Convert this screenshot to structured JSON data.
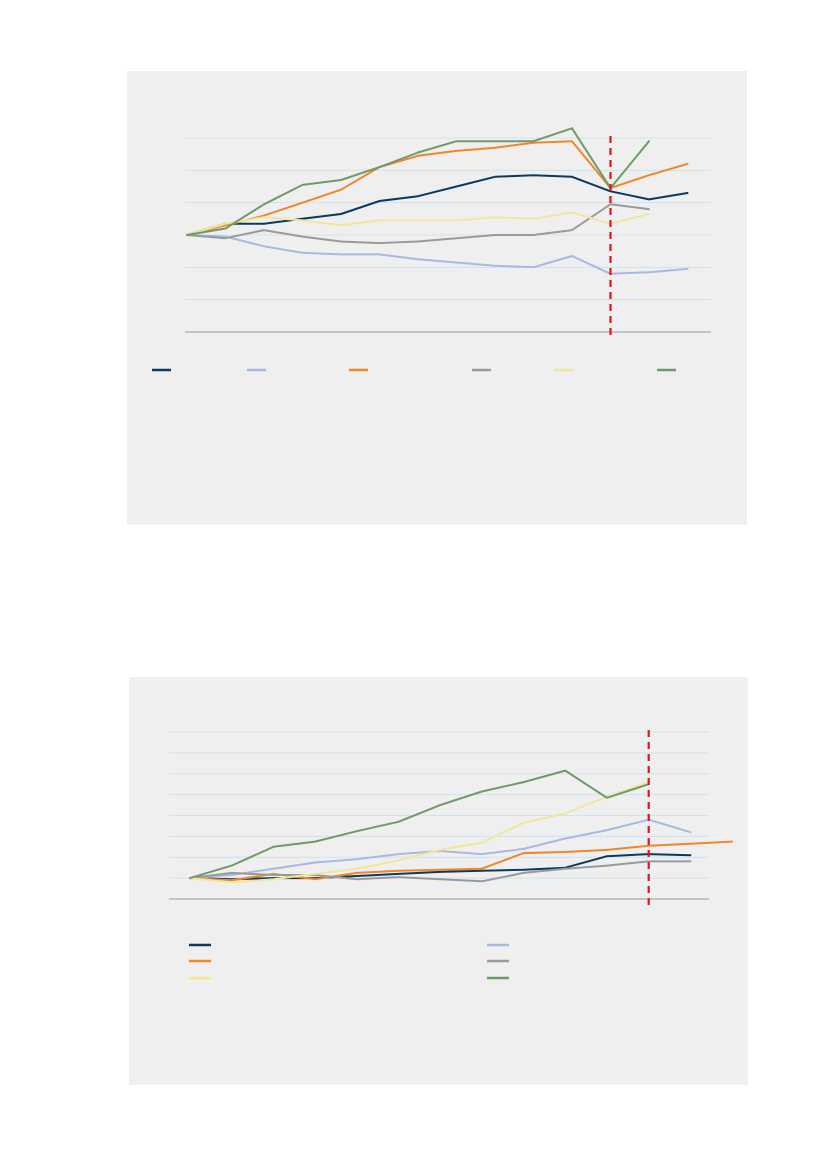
{
  "colors": {
    "panel_bg": "#efefef",
    "grid": "#cfe3ee",
    "axis": "#9a9a9a",
    "marker": "#e3151a",
    "series": [
      "#0b3a5e",
      "#a9b8e0",
      "#f0862c",
      "#9a9a9a",
      "#f1e79a",
      "#6f9a6a"
    ]
  },
  "chart_data": [
    {
      "type": "line",
      "title": "",
      "xlabel": "",
      "ylabel": "",
      "x": [
        0,
        1,
        2,
        3,
        4,
        5,
        6,
        7,
        8,
        9,
        10,
        11,
        12,
        13
      ],
      "ylim": [
        40,
        160
      ],
      "yticks": [
        40,
        60,
        80,
        100,
        120,
        140,
        160
      ],
      "grid": true,
      "vertical_marker_x": 11,
      "legend_position": "bottom",
      "series": [
        {
          "values": [
            100,
            107,
            107,
            110,
            113,
            121,
            124,
            130,
            136,
            137,
            136,
            127,
            122,
            126
          ]
        },
        {
          "values": [
            100,
            99,
            93,
            89,
            88,
            88,
            85,
            83,
            81,
            80,
            87,
            76,
            77,
            79
          ]
        },
        {
          "values": [
            100,
            106,
            112,
            120,
            128,
            142,
            149,
            152,
            154,
            157,
            158,
            129,
            137,
            144
          ]
        },
        {
          "values": [
            100,
            98,
            103,
            99,
            96,
            95,
            96,
            98,
            100,
            100,
            103,
            119,
            116,
            null
          ]
        },
        {
          "values": [
            100,
            107,
            111,
            109,
            106,
            109,
            109,
            109,
            111,
            110,
            114,
            107,
            113,
            null
          ]
        },
        {
          "values": [
            100,
            104,
            119,
            131,
            134,
            142,
            151,
            158,
            158,
            158,
            166,
            129,
            158,
            null
          ]
        }
      ]
    },
    {
      "type": "line",
      "title": "",
      "xlabel": "",
      "ylabel": "",
      "x": [
        0,
        1,
        2,
        3,
        4,
        5,
        6,
        7,
        8,
        9,
        10,
        11,
        12,
        13
      ],
      "ylim": [
        80,
        240
      ],
      "yticks": [
        80,
        100,
        120,
        140,
        160,
        180,
        200,
        220,
        240
      ],
      "grid": true,
      "vertical_marker_x": 11,
      "legend_position": "bottom",
      "series": [
        {
          "values": [
            100,
            99,
            100,
            100,
            102,
            104,
            106,
            107,
            108,
            110,
            121,
            123,
            122,
            null
          ]
        },
        {
          "values": [
            100,
            103,
            109,
            115,
            118,
            123,
            126,
            123,
            128,
            138,
            146,
            156,
            144,
            null
          ]
        },
        {
          "values": [
            100,
            98,
            104,
            99,
            105,
            107,
            108,
            109,
            124,
            125,
            127,
            131,
            133,
            135
          ]
        },
        {
          "values": [
            100,
            105,
            103,
            103,
            99,
            101,
            99,
            97,
            105,
            109,
            112,
            116,
            116,
            null
          ]
        },
        {
          "values": [
            100,
            96,
            99,
            104,
            109,
            117,
            127,
            134,
            153,
            162,
            178,
            192,
            null,
            null
          ]
        },
        {
          "values": [
            100,
            112,
            130,
            135,
            145,
            154,
            170,
            183,
            192,
            203,
            177,
            190,
            null,
            null
          ]
        }
      ]
    }
  ]
}
